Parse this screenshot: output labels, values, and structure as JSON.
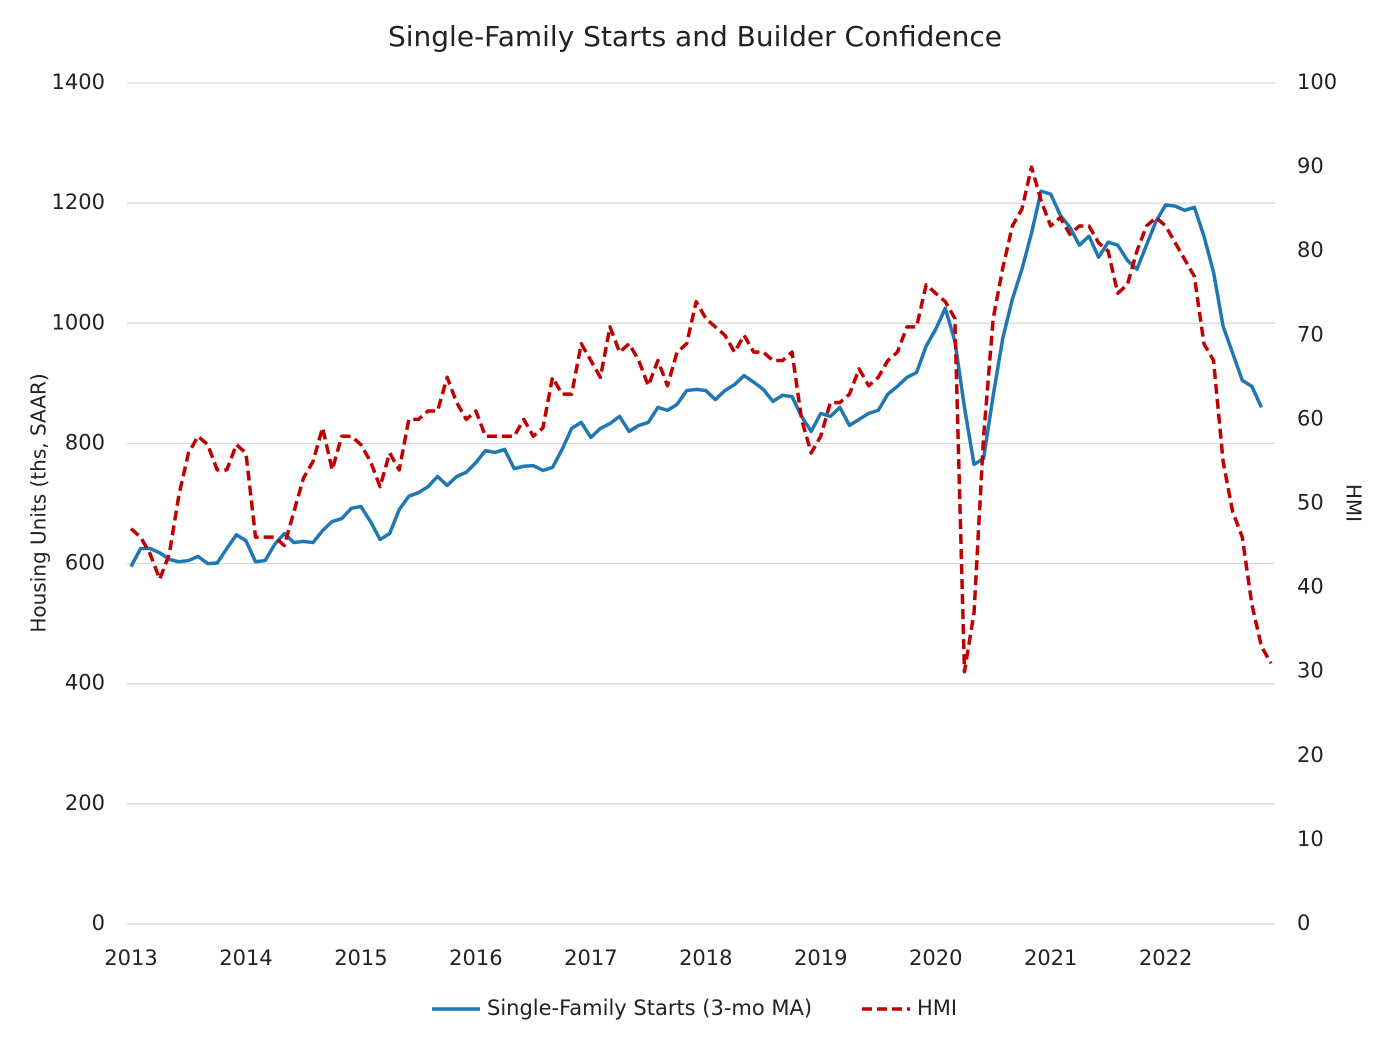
{
  "chart_data": {
    "type": "line",
    "title": "Single-Family Starts and Builder Confidence",
    "ylabel": "Housing Units (ths, SAAR)",
    "y2label": "HMI",
    "categories": [
      "2013",
      null,
      null,
      null,
      null,
      null,
      null,
      null,
      null,
      null,
      null,
      null,
      "2014",
      null,
      null,
      null,
      null,
      null,
      null,
      null,
      null,
      null,
      null,
      null,
      "2015",
      null,
      null,
      null,
      null,
      null,
      null,
      null,
      null,
      null,
      null,
      null,
      "2016",
      null,
      null,
      null,
      null,
      null,
      null,
      null,
      null,
      null,
      null,
      null,
      "2017",
      null,
      null,
      null,
      null,
      null,
      null,
      null,
      null,
      null,
      null,
      null,
      "2018",
      null,
      null,
      null,
      null,
      null,
      null,
      null,
      null,
      null,
      null,
      null,
      "2019",
      null,
      null,
      null,
      null,
      null,
      null,
      null,
      null,
      null,
      null,
      null,
      "2020",
      null,
      null,
      null,
      null,
      null,
      null,
      null,
      null,
      null,
      null,
      null,
      "2021",
      null,
      null,
      null,
      null,
      null,
      null,
      null,
      null,
      null,
      null,
      null,
      "2022",
      null,
      null,
      null,
      null,
      null,
      null,
      null,
      null,
      null,
      null,
      null
    ],
    "series": [
      {
        "name": "Single-Family Starts (3-mo MA)",
        "color": "#1f77b4",
        "dashed": false,
        "axis": "y",
        "values": [
          595,
          625,
          625,
          618,
          607,
          603,
          605,
          612,
          600,
          601,
          625,
          648,
          638,
          603,
          605,
          632,
          650,
          635,
          637,
          635,
          655,
          670,
          675,
          692,
          695,
          670,
          640,
          650,
          690,
          712,
          718,
          728,
          745,
          730,
          745,
          752,
          768,
          788,
          785,
          790,
          758,
          762,
          763,
          755,
          760,
          790,
          825,
          835,
          810,
          825,
          833,
          845,
          820,
          830,
          835,
          860,
          855,
          865,
          888,
          890,
          888,
          873,
          888,
          898,
          913,
          902,
          890,
          870,
          880,
          878,
          845,
          820,
          850,
          845,
          860,
          830,
          840,
          850,
          855,
          882,
          895,
          910,
          918,
          962,
          990,
          1025,
          970,
          860,
          765,
          775,
          880,
          975,
          1040,
          1090,
          1150,
          1220,
          1215,
          1180,
          1160,
          1130,
          1145,
          1110,
          1135,
          1130,
          1105,
          1090,
          1130,
          1170,
          1197,
          1195,
          1188,
          1193,
          1145,
          1085,
          995,
          950,
          905,
          895,
          860,
          null
        ]
      },
      {
        "name": "HMI",
        "color": "#c00000",
        "dashed": true,
        "axis": "y2",
        "values": [
          47,
          46,
          44,
          41,
          44,
          51,
          56,
          58,
          57,
          54,
          54,
          57,
          56,
          46,
          46,
          46,
          45,
          49,
          53,
          55,
          59,
          54,
          58,
          58,
          57,
          55,
          52,
          56,
          54,
          60,
          60,
          61,
          61,
          65,
          62,
          60,
          61,
          58,
          58,
          58,
          58,
          60,
          58,
          59,
          65,
          63,
          63,
          69,
          67,
          65,
          71,
          68,
          69,
          67,
          64,
          67,
          64,
          68,
          69,
          74,
          72,
          71,
          70,
          68,
          70,
          68,
          68,
          67,
          67,
          68,
          60,
          56,
          58,
          62,
          62,
          63,
          66,
          64,
          65,
          67,
          68,
          71,
          71,
          76,
          75,
          74,
          72,
          30,
          37,
          58,
          72,
          78,
          83,
          85,
          90,
          86,
          83,
          84,
          82,
          83,
          83,
          81,
          80,
          75,
          76,
          80,
          83,
          84,
          83,
          81,
          79,
          77,
          69,
          67,
          55,
          49,
          46,
          38,
          33,
          31
        ]
      }
    ],
    "ylim": [
      0,
      1400
    ],
    "yticks": [
      0,
      200,
      400,
      600,
      800,
      1000,
      1200,
      1400
    ],
    "y2lim": [
      0,
      100
    ],
    "y2ticks": [
      0,
      10,
      20,
      30,
      40,
      50,
      60,
      70,
      80,
      90,
      100
    ],
    "grid": true,
    "legend": "bottom"
  }
}
